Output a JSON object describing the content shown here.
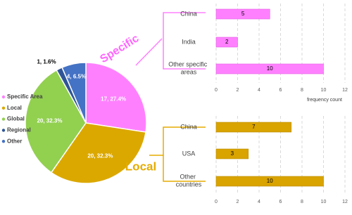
{
  "chart_data": [
    {
      "type": "pie",
      "categories": [
        "Specific Area",
        "Local",
        "Global",
        "Regional",
        "Other"
      ],
      "values": [
        17,
        20,
        20,
        1,
        4
      ],
      "value_labels": [
        "17, 27.4%",
        "20, 32.3%",
        "20, 32.3%",
        "1, 1.6%",
        "4, 6.5%"
      ],
      "colors": [
        "#ff80ff",
        "#dba800",
        "#92d050",
        "#2f5597",
        "#4472c4"
      ],
      "legend": "left",
      "annotations": [
        {
          "text": "Specific",
          "color": "#ff66ff"
        },
        {
          "text": "Local",
          "color": "#e5ac00"
        }
      ]
    },
    {
      "type": "barh",
      "categories": [
        "China",
        "India",
        "Other specific areas"
      ],
      "values": [
        5,
        2,
        10
      ],
      "color": "#ff80ff",
      "xlim": [
        0,
        12
      ],
      "xticks": [
        0,
        2,
        4,
        6,
        8,
        10,
        12
      ],
      "xlabel": "frequency count",
      "grid": true
    },
    {
      "type": "barh",
      "categories": [
        "China",
        "USA",
        "Other countries"
      ],
      "values": [
        7,
        3,
        10
      ],
      "color": "#d9a300",
      "xlim": [
        0,
        12
      ],
      "xticks": [
        0,
        2,
        4,
        6,
        8,
        10,
        12
      ],
      "grid": true
    }
  ]
}
